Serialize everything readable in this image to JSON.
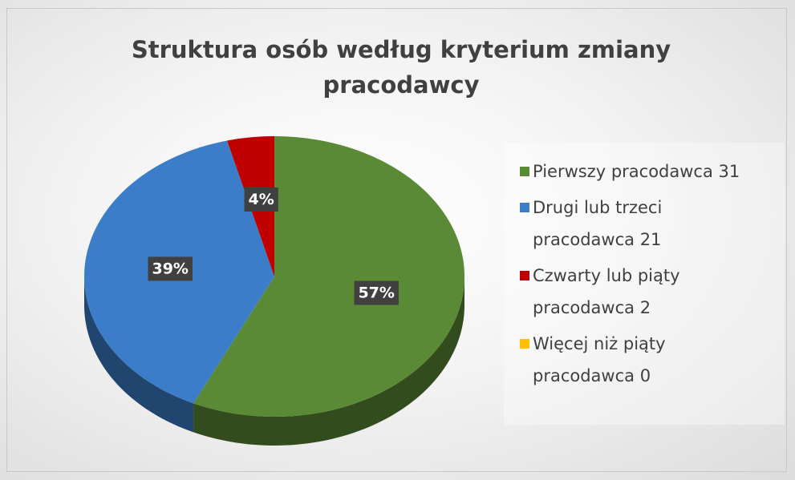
{
  "chart_data": {
    "type": "pie",
    "title": "Struktura osób według kryterium zmiany pracodawcy",
    "categories": [
      "Pierwszy pracodawca  31",
      "Drugi lub trzeci pracodawca  21",
      "Czwarty lub piąty pracodawca  2",
      "Więcej niż piąty pracodawca  0"
    ],
    "values": [
      57,
      39,
      4,
      0
    ],
    "value_labels": [
      "57%",
      "39%",
      "4%",
      null
    ],
    "colors": [
      "#5a8a35",
      "#3b7dc8",
      "#c00000",
      "#ffc000"
    ],
    "legend": "right"
  }
}
